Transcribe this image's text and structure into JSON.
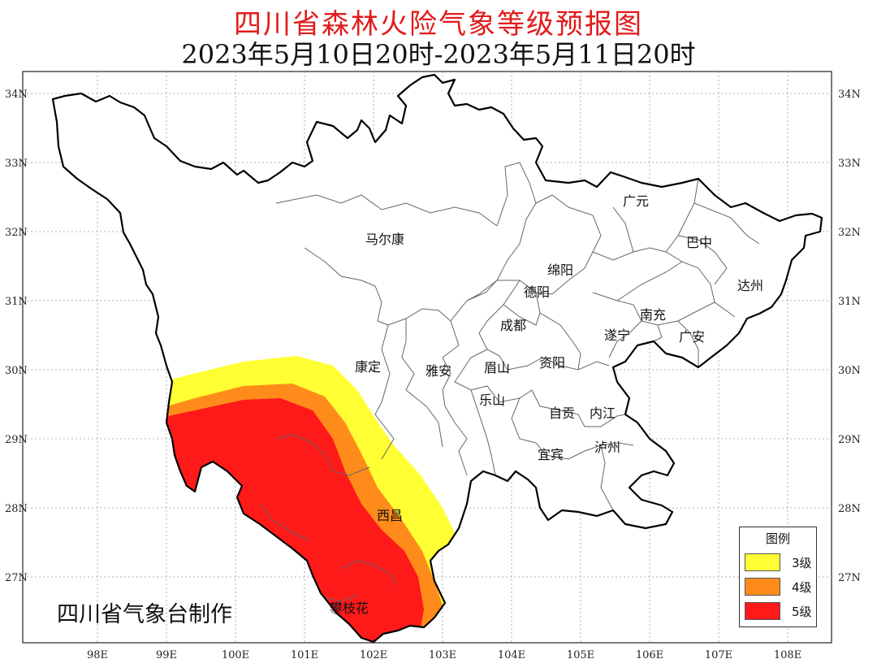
{
  "title": "四川省森林火险气象等级预报图",
  "subtitle": "2023年5月10日20时-2023年5月11日20时",
  "credit": "四川省气象台制作",
  "axes": {
    "lat_ticks": [
      "34N",
      "33N",
      "32N",
      "31N",
      "30N",
      "29N",
      "28N",
      "27N"
    ],
    "lon_ticks": [
      "98E",
      "99E",
      "100E",
      "101E",
      "102E",
      "103E",
      "104E",
      "105E",
      "106E",
      "107E",
      "108E"
    ]
  },
  "cities": [
    {
      "name": "马尔康"
    },
    {
      "name": "广元"
    },
    {
      "name": "巴中"
    },
    {
      "name": "绵阳"
    },
    {
      "name": "德阳"
    },
    {
      "name": "达州"
    },
    {
      "name": "成都"
    },
    {
      "name": "南充"
    },
    {
      "name": "遂宁"
    },
    {
      "name": "广安"
    },
    {
      "name": "康定"
    },
    {
      "name": "雅安"
    },
    {
      "name": "眉山"
    },
    {
      "name": "资阳"
    },
    {
      "name": "乐山"
    },
    {
      "name": "自贡"
    },
    {
      "name": "内江"
    },
    {
      "name": "宜宾"
    },
    {
      "name": "泸州"
    },
    {
      "name": "西昌"
    },
    {
      "name": "攀枝花"
    }
  ],
  "legend": {
    "title": "图例",
    "items": [
      {
        "label": "3级",
        "color": "#ffff33"
      },
      {
        "label": "4级",
        "color": "#ff8c1a"
      },
      {
        "label": "5级",
        "color": "#ff1a1a"
      }
    ]
  },
  "colors": {
    "title": "#e21a1a",
    "level3": "#ffff33",
    "level4": "#ff8c1a",
    "level5": "#ff1a1a",
    "border": "#000000"
  }
}
